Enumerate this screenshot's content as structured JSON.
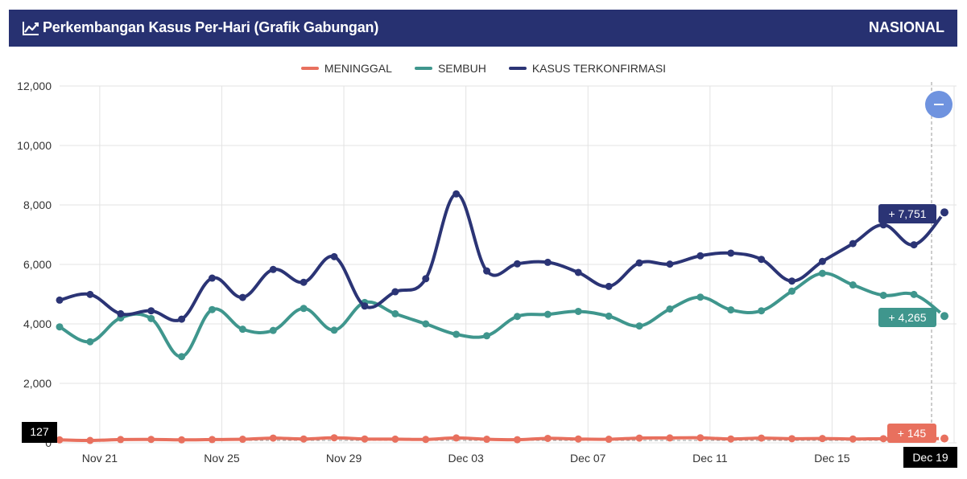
{
  "header": {
    "title": "Perkembangan Kasus Per-Hari (Grafik Gabungan)",
    "scope": "NASIONAL"
  },
  "legend": [
    {
      "name": "MENINGGAL",
      "color": "#e8705e"
    },
    {
      "name": "SEMBUH",
      "color": "#3f968d"
    },
    {
      "name": "KASUS TERKONFIRMASI",
      "color": "#2b3475"
    }
  ],
  "crosshair": {
    "y_value": "127",
    "x_value": "Dec 19"
  },
  "tooltips": {
    "confirmed": "+ 7,751",
    "recovered": "+ 4,265",
    "deaths": "+ 145"
  },
  "chart_data": {
    "type": "line",
    "ylim": [
      0,
      12000
    ],
    "y_ticks": [
      "0",
      "2,000",
      "4,000",
      "6,000",
      "8,000",
      "10,000",
      "12,000"
    ],
    "x_tick_labels": [
      "Nov 21",
      "Nov 25",
      "Nov 29",
      "Dec 03",
      "Dec 07",
      "Dec 11",
      "Dec 15",
      "Dec 19"
    ],
    "x": [
      "Nov 20",
      "Nov 21",
      "Nov 22",
      "Nov 23",
      "Nov 24",
      "Nov 25",
      "Nov 26",
      "Nov 27",
      "Nov 28",
      "Nov 29",
      "Nov 30",
      "Dec 01",
      "Dec 02",
      "Dec 03",
      "Dec 04",
      "Dec 05",
      "Dec 06",
      "Dec 07",
      "Dec 08",
      "Dec 09",
      "Dec 10",
      "Dec 11",
      "Dec 12",
      "Dec 13",
      "Dec 14",
      "Dec 15",
      "Dec 16",
      "Dec 17",
      "Dec 18",
      "Dec 19"
    ],
    "series": [
      {
        "name": "MENINGGAL",
        "color": "#e8705e",
        "values": [
          100,
          80,
          110,
          115,
          100,
          110,
          120,
          160,
          130,
          170,
          130,
          125,
          115,
          165,
          120,
          105,
          150,
          130,
          120,
          160,
          165,
          170,
          130,
          160,
          140,
          145,
          130,
          140,
          130,
          145
        ]
      },
      {
        "name": "SEMBUH",
        "color": "#3f968d",
        "values": [
          3900,
          3400,
          4200,
          4180,
          2900,
          4480,
          3820,
          3780,
          4520,
          3790,
          4720,
          4340,
          4000,
          3650,
          3600,
          4250,
          4320,
          4420,
          4260,
          3930,
          4500,
          4900,
          4470,
          4440,
          5100,
          5700,
          5310,
          4960,
          4990,
          4265
        ]
      },
      {
        "name": "KASUS TERKONFIRMASI",
        "color": "#2b3475",
        "values": [
          4800,
          4990,
          4340,
          4440,
          4160,
          5540,
          4890,
          5830,
          5400,
          6260,
          4600,
          5080,
          5520,
          8370,
          5780,
          6020,
          6070,
          5730,
          5260,
          6050,
          6010,
          6290,
          6380,
          6170,
          5440,
          6100,
          6700,
          7330,
          6660,
          7751
        ]
      }
    ]
  }
}
